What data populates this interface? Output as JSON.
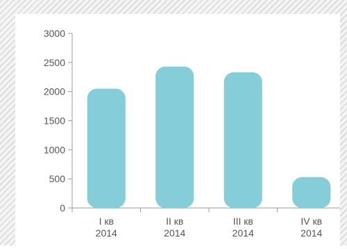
{
  "chart_data": {
    "type": "bar",
    "categories": [
      [
        "I кв",
        "2014"
      ],
      [
        "II кв",
        "2014"
      ],
      [
        "III кв",
        "2014"
      ],
      [
        "IV кв",
        "2014"
      ]
    ],
    "values": [
      2050,
      2430,
      2330,
      530
    ],
    "ylim": [
      0,
      3000
    ],
    "yticks": [
      0,
      500,
      1000,
      1500,
      2000,
      2500,
      3000
    ],
    "bar_color": "#84cdd9",
    "grid": false,
    "legend": "none"
  }
}
